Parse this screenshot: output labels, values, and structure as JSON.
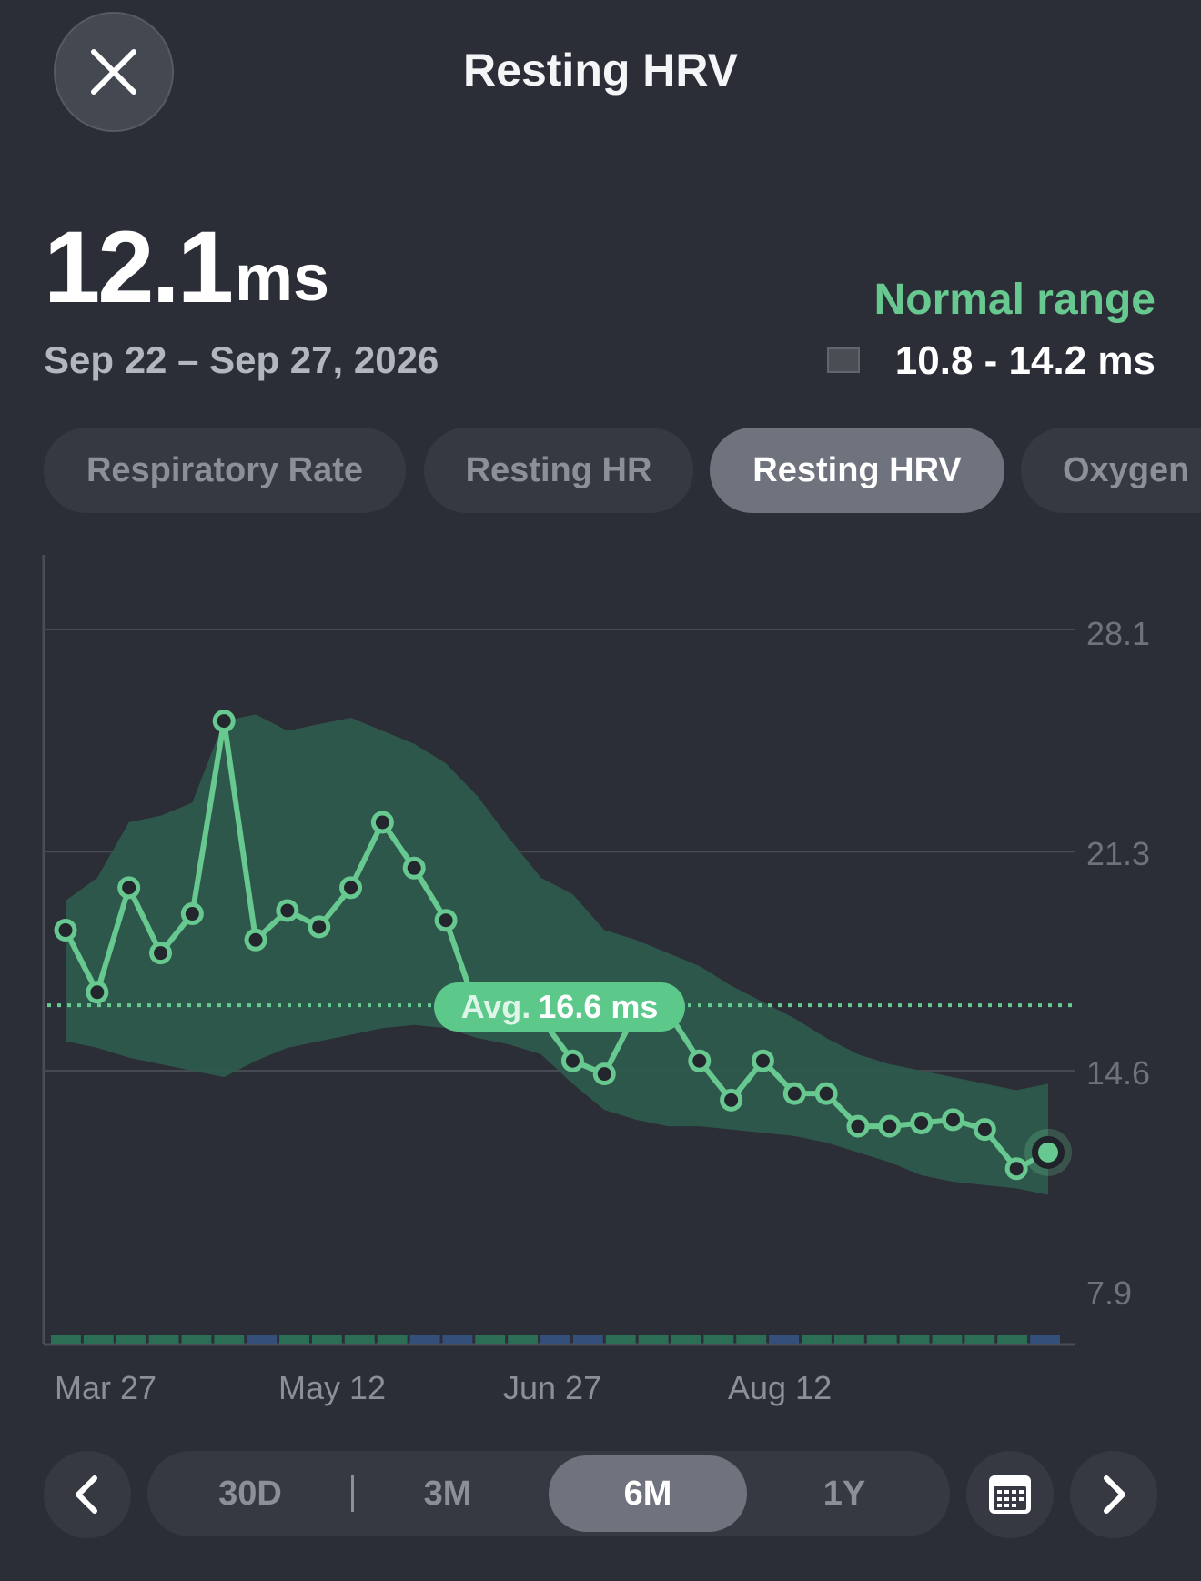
{
  "header": {
    "title": "Resting HRV",
    "close_icon": "close-icon"
  },
  "summary": {
    "value": "12.1",
    "unit": "ms",
    "date_range": "Sep 22 – Sep 27, 2026",
    "normal_label": "Normal range",
    "normal_values": "10.8 - 14.2 ms"
  },
  "tabs": [
    {
      "label": "Respiratory Rate",
      "active": false
    },
    {
      "label": "Resting HR",
      "active": false
    },
    {
      "label": "Resting HRV",
      "active": true
    },
    {
      "label": "Oxygen",
      "active": false
    }
  ],
  "periods": [
    {
      "label": "30D",
      "active": false
    },
    {
      "label": "3M",
      "active": false
    },
    {
      "label": "6M",
      "active": true
    },
    {
      "label": "1Y",
      "active": false
    }
  ],
  "nav": {
    "prev_icon": "chevron-left-icon",
    "next_icon": "chevron-right-icon",
    "calendar_icon": "calendar-icon"
  },
  "colors": {
    "line": "#67c98f",
    "band": "#2e5a4c",
    "background": "#2b2e37",
    "accent": "#5cc88a"
  },
  "chart_data": {
    "type": "line",
    "x_tick_labels": [
      "Mar 27",
      "May 12",
      "Jun 27",
      "Aug 12"
    ],
    "y_tick_labels": [
      "28.1",
      "21.3",
      "14.6",
      "7.9"
    ],
    "y_ticks": [
      28.1,
      21.3,
      14.6,
      7.9
    ],
    "ylim": [
      6.0,
      30.5
    ],
    "average": {
      "prefix": "Avg.",
      "label": "16.6 ms",
      "value": 16.6
    },
    "series": [
      {
        "values": [
          18.9,
          17.0,
          20.2,
          18.2,
          19.4,
          25.3,
          18.6,
          19.5,
          19.0,
          20.2,
          22.2,
          20.8,
          19.2,
          16.4,
          16.4,
          16.2,
          14.9,
          14.5,
          16.4,
          16.4,
          14.9,
          13.7,
          14.9,
          13.9,
          13.9,
          12.9,
          12.9,
          13.0,
          13.1,
          12.8,
          11.6,
          12.1
        ],
        "range_upper": [
          19.8,
          20.5,
          22.2,
          22.4,
          22.8,
          25.3,
          25.5,
          25.0,
          25.2,
          25.4,
          25.0,
          24.6,
          24.0,
          23.0,
          21.7,
          20.5,
          20.0,
          18.9,
          18.6,
          18.2,
          17.8,
          17.2,
          16.7,
          16.2,
          15.6,
          15.1,
          14.8,
          14.6,
          14.4,
          14.2,
          14.0,
          14.2
        ],
        "range_lower": [
          15.5,
          15.3,
          15.0,
          14.8,
          14.6,
          14.4,
          14.9,
          15.3,
          15.5,
          15.7,
          15.9,
          16.0,
          15.9,
          15.6,
          15.4,
          15.1,
          14.2,
          13.4,
          13.1,
          12.9,
          12.9,
          12.8,
          12.7,
          12.6,
          12.4,
          12.1,
          11.8,
          11.4,
          11.2,
          11.1,
          11.0,
          10.8
        ]
      }
    ],
    "grid": true
  }
}
